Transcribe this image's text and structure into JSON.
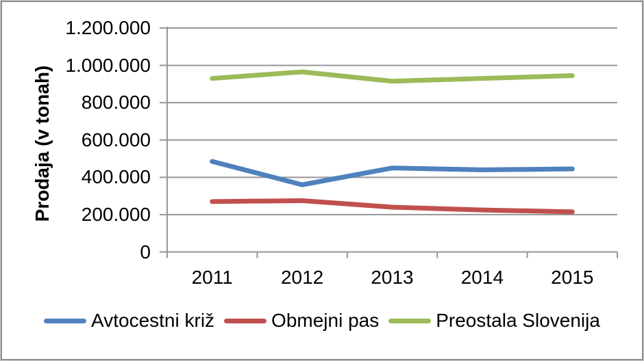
{
  "chart_data": {
    "type": "line",
    "title": "",
    "xlabel": "",
    "ylabel": "Prodaja (v tonah)",
    "categories": [
      "2011",
      "2012",
      "2013",
      "2014",
      "2015"
    ],
    "series": [
      {
        "name": "Avtocestni križ",
        "color": "#4F81BD",
        "values": [
          485000,
          360000,
          450000,
          440000,
          445000
        ]
      },
      {
        "name": "Obmejni pas",
        "color": "#C0504D",
        "values": [
          270000,
          275000,
          240000,
          225000,
          215000
        ]
      },
      {
        "name": "Preostala Slovenija",
        "color": "#9BBB59",
        "values": [
          930000,
          965000,
          915000,
          930000,
          945000
        ]
      }
    ],
    "ylim": [
      0,
      1200000
    ],
    "ytick_interval": 200000,
    "ytick_labels": [
      "0",
      "200.000",
      "400.000",
      "600.000",
      "800.000",
      "1.000.000",
      "1.200.000"
    ],
    "grid": "horizontal-only",
    "legend_position": "bottom",
    "colors": {
      "gridline": "#969696",
      "axis": "#969696",
      "text": "#000000",
      "frame_border": "#8f8f8f"
    }
  }
}
